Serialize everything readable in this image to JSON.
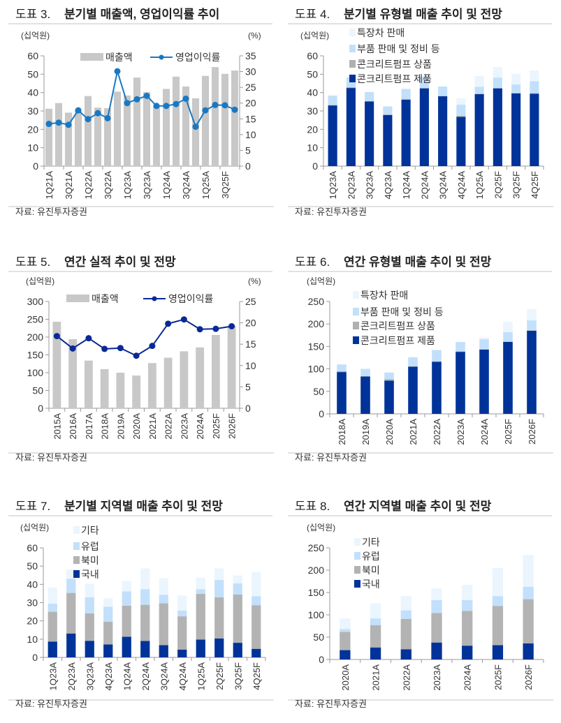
{
  "panels": [
    {
      "fig": "도표 3.",
      "title": "분기별 매출액, 영업이익률 추이",
      "source": "자료: 유진투자증권"
    },
    {
      "fig": "도표 4.",
      "title": "분기별 유형별 매출 추이 및 전망",
      "source": "자료: 유진투자증권"
    },
    {
      "fig": "도표 5.",
      "title": "연간 실적 추이 및 전망",
      "source": "자료: 유진투자증권"
    },
    {
      "fig": "도표 6.",
      "title": "연간 유형별 매출 추이 및 전망",
      "source": "자료: 유진투자증권"
    },
    {
      "fig": "도표 7.",
      "title": "분기별 지역별 매출 추이 및 전망",
      "source": "자료: 유진투자증권"
    },
    {
      "fig": "도표 8.",
      "title": "연간 지역별 매출 추이 및 전망",
      "source": "자료: 유진투자증권"
    }
  ],
  "chart_data": [
    {
      "type": "bar+line",
      "title": "분기별 매출액, 영업이익률 추이",
      "ylabel": "(십억원)",
      "y2label": "(%)",
      "ylim": [
        0,
        60
      ],
      "y2lim": [
        0,
        35
      ],
      "yticks": [
        "0",
        "10",
        "20",
        "30",
        "40",
        "50",
        "60"
      ],
      "y2ticks": [
        "0",
        "5",
        "10",
        "15",
        "20",
        "25",
        "30",
        "35"
      ],
      "x_tick_labels": [
        "1Q21A",
        "3Q21A",
        "1Q22A",
        "3Q22A",
        "1Q23A",
        "3Q23A",
        "1Q24A",
        "3Q24A",
        "1Q25A",
        "3Q25F"
      ],
      "label_every": 2,
      "legend_placement": "top",
      "grid": false,
      "series": [
        {
          "name": "매출액",
          "kind": "bar",
          "color": "#c8c8c8",
          "values": [
            31.2,
            34.3,
            29.1,
            30.0,
            38.1,
            31.8,
            31.5,
            40.5,
            38.4,
            48.2,
            40.3,
            32.5,
            42.0,
            48.7,
            43.3,
            36.9,
            49.1,
            53.9,
            50.2,
            52.0
          ]
        },
        {
          "name": "영업이익률",
          "kind": "line",
          "axis": "right",
          "color": "#1a78c2",
          "values": [
            13.4,
            13.8,
            13.1,
            17.7,
            14.9,
            16.8,
            15.2,
            30.1,
            20.0,
            21.2,
            22.3,
            19.1,
            19.1,
            19.7,
            21.4,
            12.5,
            17.7,
            19.4,
            19.3,
            17.9
          ]
        }
      ]
    },
    {
      "type": "stacked-bar",
      "title": "분기별 유형별 매출 추이 및 전망",
      "ylabel": "(십억원)",
      "ylim": [
        0,
        60
      ],
      "yticks": [
        "0",
        "10",
        "20",
        "30",
        "40",
        "50",
        "60"
      ],
      "categories": [
        "1Q23A",
        "2Q23A",
        "3Q23A",
        "4Q23A",
        "1Q24A",
        "2Q24A",
        "3Q24A",
        "4Q24A",
        "1Q25A",
        "2Q25F",
        "3Q25F",
        "4Q25F"
      ],
      "legend_placement": "top-left",
      "grid": false,
      "series": [
        {
          "name": "콘크리트펌프 제품",
          "color": "#003399",
          "values": [
            33.0,
            42.5,
            35.2,
            27.8,
            36.1,
            42.3,
            38.0,
            26.8,
            39.2,
            42.3,
            39.6,
            39.4
          ]
        },
        {
          "name": "콘크리트펌프 상품",
          "color": "#b0b0b0",
          "values": [
            0.3,
            0.5,
            0.2,
            0.3,
            0.5,
            0.2,
            0.2,
            0.6,
            0.2,
            0.2,
            0.2,
            0.4
          ]
        },
        {
          "name": "부품 판매 및 정비 등",
          "color": "#c2e0fb",
          "values": [
            5.1,
            5.2,
            4.9,
            4.4,
            5.4,
            6.2,
            5.1,
            6.0,
            3.8,
            5.7,
            4.7,
            6.4
          ]
        },
        {
          "name": "특장차 판매",
          "color": "#ebf5fe",
          "values": [
            0,
            0,
            0,
            0,
            0,
            0,
            0,
            3.5,
            5.9,
            5.7,
            5.7,
            5.8
          ]
        }
      ]
    },
    {
      "type": "bar+line",
      "title": "연간 실적 추이 및 전망",
      "ylabel": "(십억원)",
      "y2label": "(%)",
      "ylim": [
        0,
        300
      ],
      "y2lim": [
        0,
        25
      ],
      "yticks": [
        "0",
        "50",
        "100",
        "150",
        "200",
        "250",
        "300"
      ],
      "y2ticks": [
        "0",
        "5",
        "10",
        "15",
        "20",
        "25"
      ],
      "x_tick_labels": [
        "2015A",
        "2016A",
        "2017A",
        "2018A",
        "2019A",
        "2020A",
        "2021A",
        "2022A",
        "2023A",
        "2024A",
        "2025F",
        "2026F"
      ],
      "label_every": 1,
      "legend_placement": "top",
      "grid": false,
      "series": [
        {
          "name": "매출액",
          "kind": "bar",
          "color": "#c8c8c8",
          "values": [
            243,
            194,
            134,
            110,
            100,
            92,
            127,
            142,
            160,
            171,
            206,
            232
          ]
        },
        {
          "name": "영업이익률",
          "kind": "line",
          "axis": "right",
          "color": "#0a2896",
          "values": [
            16.9,
            14.0,
            16.4,
            13.9,
            14.1,
            12.3,
            14.6,
            19.8,
            20.8,
            18.5,
            18.6,
            19.2
          ]
        }
      ]
    },
    {
      "type": "stacked-bar",
      "title": "연간 유형별 매출 추이 및 전망",
      "ylabel": "(십억원)",
      "ylim": [
        0,
        250
      ],
      "yticks": [
        "0",
        "50",
        "100",
        "150",
        "200",
        "250"
      ],
      "categories": [
        "2018A",
        "2019A",
        "2020A",
        "2021A",
        "2022A",
        "2023A",
        "2024A",
        "2025F",
        "2026F"
      ],
      "legend_placement": "top-left",
      "grid": false,
      "series": [
        {
          "name": "콘크리트펌프 제품",
          "color": "#003399",
          "values": [
            93,
            83,
            74,
            105,
            116,
            138,
            143,
            160,
            185
          ]
        },
        {
          "name": "콘크리트펌프 상품",
          "color": "#b0b0b0",
          "values": [
            2,
            1,
            3,
            1,
            1,
            1,
            1,
            1,
            1
          ]
        },
        {
          "name": "부품 판매 및 정비 등",
          "color": "#c2e0fb",
          "values": [
            15,
            16,
            15,
            20,
            25,
            21,
            22,
            21,
            22
          ]
        },
        {
          "name": "특장차 판매",
          "color": "#ebf5fe",
          "values": [
            0,
            0,
            0,
            0,
            0,
            0,
            4,
            23,
            25
          ]
        }
      ]
    },
    {
      "type": "stacked-bar",
      "title": "분기별 지역별 매출 추이 및 전망",
      "ylabel": "(십억원)",
      "ylim": [
        0,
        60
      ],
      "yticks": [
        "0",
        "10",
        "20",
        "30",
        "40",
        "50",
        "60"
      ],
      "categories": [
        "1Q23A",
        "2Q23A",
        "3Q23A",
        "4Q23A",
        "1Q24A",
        "2Q24A",
        "3Q24A",
        "4Q24A",
        "1Q25A",
        "2Q25F",
        "3Q25F",
        "4Q25F"
      ],
      "legend_placement": "top-left",
      "grid": false,
      "series": [
        {
          "name": "국내",
          "color": "#003399",
          "values": [
            8.7,
            13.1,
            9.1,
            7.1,
            11.3,
            9.0,
            6.7,
            4.3,
            9.8,
            10.4,
            8.0,
            4.7
          ]
        },
        {
          "name": "북미",
          "color": "#b3b3b3",
          "values": [
            16.3,
            22.2,
            15.0,
            12.4,
            17.0,
            19.8,
            22.9,
            18.2,
            25.0,
            22.5,
            26.4,
            23.9
          ]
        },
        {
          "name": "유럽",
          "color": "#c2e0fb",
          "values": [
            4.5,
            7.7,
            8.8,
            8.3,
            7.9,
            8.6,
            4.7,
            3.2,
            2.6,
            9.5,
            6.1,
            4.9
          ]
        },
        {
          "name": "기타",
          "color": "#ebf5fe",
          "values": [
            8.8,
            5.3,
            7.4,
            4.6,
            5.7,
            11.3,
            9.1,
            8.2,
            6.3,
            6.3,
            4.4,
            13.2
          ]
        }
      ]
    },
    {
      "type": "stacked-bar",
      "title": "연간 지역별 매출 추이 및 전망",
      "ylabel": "(십억원)",
      "ylim": [
        0,
        250
      ],
      "yticks": [
        "0",
        "50",
        "100",
        "150",
        "200",
        "250"
      ],
      "categories": [
        "2020A",
        "2021A",
        "2022A",
        "2023A",
        "2024A",
        "2025F",
        "2026F"
      ],
      "legend_placement": "top-left",
      "grid": false,
      "series": [
        {
          "name": "국내",
          "color": "#003399",
          "values": [
            21,
            27,
            23,
            38,
            31,
            32,
            36
          ]
        },
        {
          "name": "북미",
          "color": "#b3b3b3",
          "values": [
            41,
            50,
            68,
            66,
            78,
            88,
            99
          ]
        },
        {
          "name": "유럽",
          "color": "#c2e0fb",
          "values": [
            6,
            15,
            19,
            29,
            24,
            22,
            28
          ]
        },
        {
          "name": "기타",
          "color": "#ebf5fe",
          "values": [
            24,
            34,
            32,
            26,
            34,
            63,
            71
          ]
        }
      ]
    }
  ]
}
